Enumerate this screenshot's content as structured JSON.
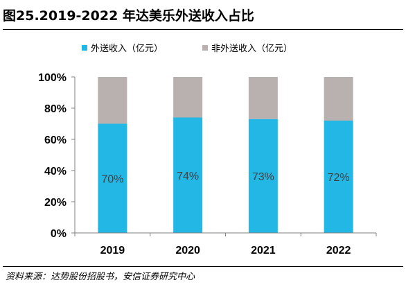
{
  "header": {
    "title": "图25.2019-2022 年达美乐外送收入占比"
  },
  "footer": {
    "source": "资料来源：达势股份招股书，安信证券研究中心"
  },
  "colors": {
    "series_1": "#23B7E5",
    "series_2": "#B9B0B0",
    "axis": "#7F7F7F",
    "text": "#000000",
    "data_label": "#404040"
  },
  "chart_data": {
    "type": "bar",
    "stacked": true,
    "categories": [
      "2019",
      "2020",
      "2021",
      "2022"
    ],
    "series": [
      {
        "name": "外送收入（亿元）",
        "values": [
          70,
          74,
          73,
          72
        ],
        "color": "#23B7E5",
        "labels": [
          "70%",
          "74%",
          "73%",
          "72%"
        ]
      },
      {
        "name": "非外送收入（亿元）",
        "values": [
          30,
          26,
          27,
          28
        ],
        "color": "#B9B0B0"
      }
    ],
    "y_ticks": [
      "0%",
      "20%",
      "40%",
      "60%",
      "80%",
      "100%"
    ],
    "ylim": [
      0,
      100
    ],
    "legend_position": "top",
    "grid": false
  }
}
